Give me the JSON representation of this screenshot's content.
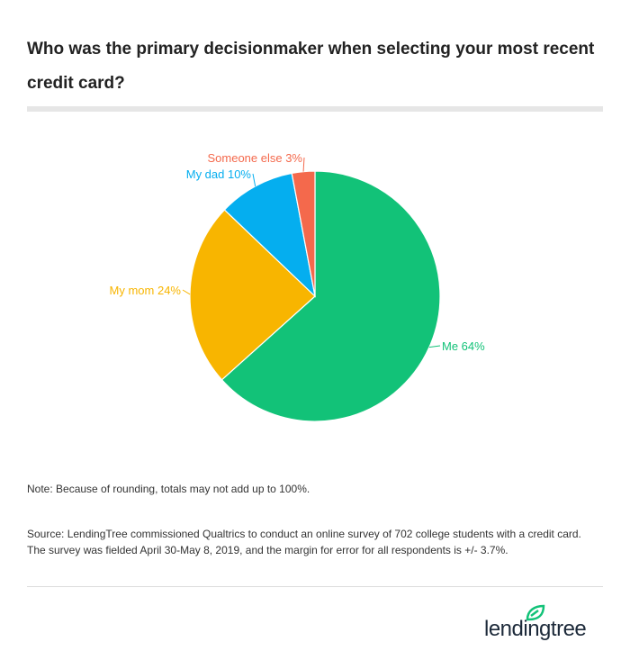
{
  "chart_data": {
    "type": "pie",
    "title": "Who was the primary decisionmaker when selecting your most recent credit card?",
    "slices": [
      {
        "label": "Me 64%",
        "value": 64,
        "color": "#12c278"
      },
      {
        "label": "My mom 24%",
        "value": 24,
        "color": "#f8b500"
      },
      {
        "label": "My dad 10%",
        "value": 10,
        "color": "#05aeef"
      },
      {
        "label": "Someone else 3%",
        "value": 3,
        "color": "#f4694c"
      }
    ]
  },
  "note": "Note: Because of rounding, totals may not add up to 100%.",
  "source_line1": "Source: LendingTree commissioned Qualtrics to conduct an online survey of 702 college students with a credit card.",
  "source_line2": "The survey was fielded April 30-May 8, 2019, and the margin for error for all respondents is +/- 3.7%.",
  "logo": {
    "text": "lendingtree",
    "leaf_color": "#12c278"
  }
}
